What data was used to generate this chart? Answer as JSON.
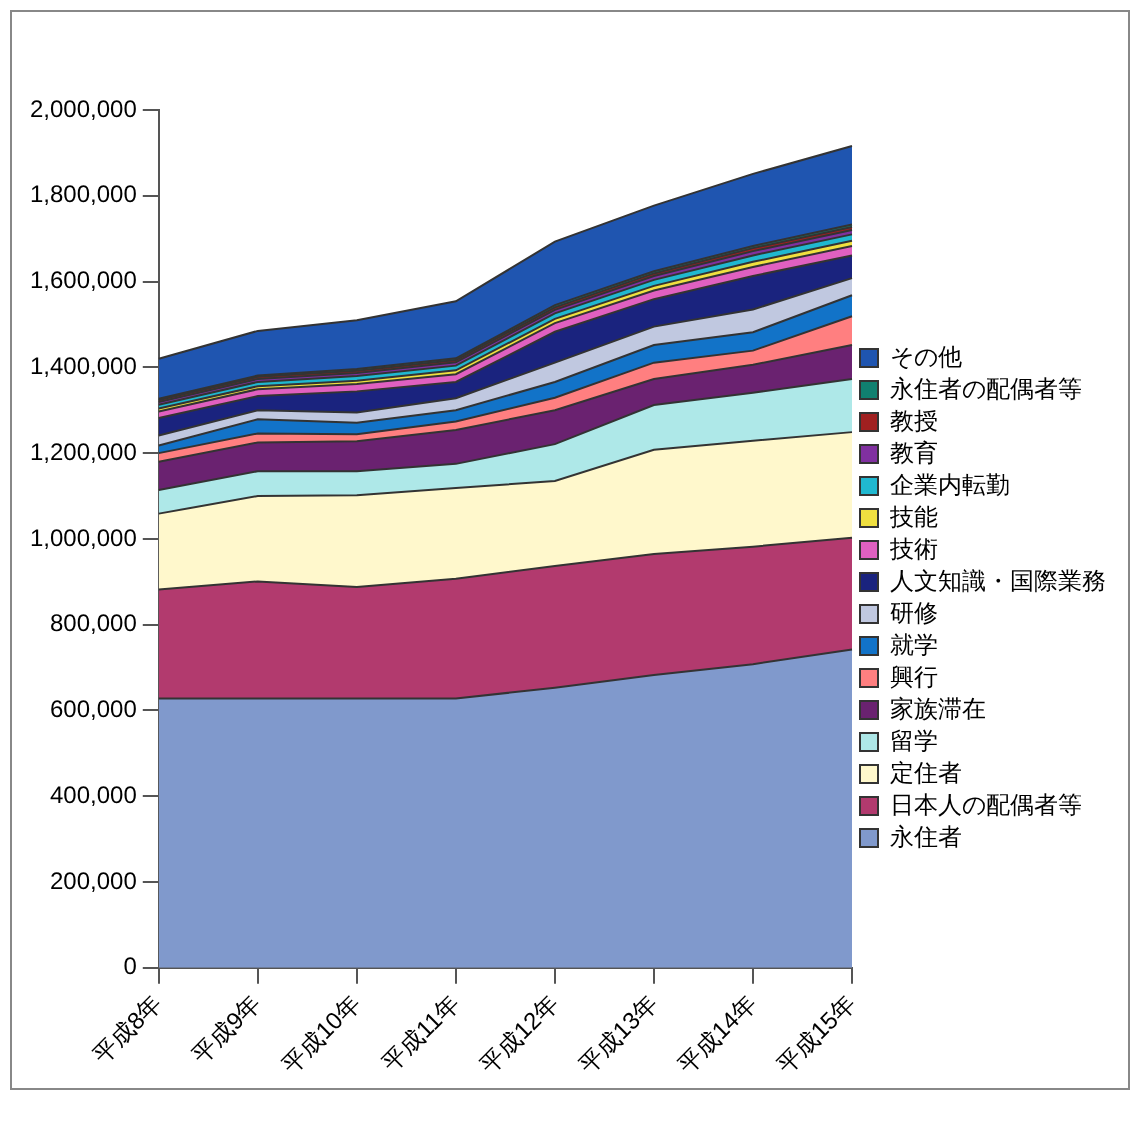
{
  "chart_data": {
    "type": "area",
    "stacked": true,
    "grid": false,
    "legend": "right",
    "categories": [
      "平成8年",
      "平成9年",
      "平成10年",
      "平成11年",
      "平成12年",
      "平成13年",
      "平成14年",
      "平成15年"
    ],
    "ylim": [
      0,
      2000000
    ],
    "yticks": [
      {
        "value": 0,
        "label": "0"
      },
      {
        "value": 200000,
        "label": "200,000"
      },
      {
        "value": 400000,
        "label": "400,000"
      },
      {
        "value": 600000,
        "label": "600,000"
      },
      {
        "value": 800000,
        "label": "800,000"
      },
      {
        "value": 1000000,
        "label": "1,000,000"
      },
      {
        "value": 1200000,
        "label": "1,200,000"
      },
      {
        "value": 1400000,
        "label": "1,400,000"
      },
      {
        "value": 1600000,
        "label": "1,600,000"
      },
      {
        "value": 1800000,
        "label": "1,800,000"
      },
      {
        "value": 2000000,
        "label": "2,000,000"
      }
    ],
    "series": [
      {
        "name": "永住者",
        "color": "#8099cc",
        "values": [
          628000,
          628000,
          628000,
          628000,
          653000,
          683000,
          708000,
          742000
        ]
      },
      {
        "name": "日本人の配偶者等",
        "color": "#b23a6e",
        "values": [
          254000,
          273000,
          260000,
          279000,
          284000,
          282000,
          274000,
          261000
        ]
      },
      {
        "name": "定住者",
        "color": "#fff8cc",
        "values": [
          177000,
          199000,
          214000,
          212000,
          198000,
          243000,
          247000,
          246000
        ]
      },
      {
        "name": "留学",
        "color": "#aee8e8",
        "values": [
          55000,
          58000,
          56000,
          56000,
          86000,
          104000,
          112000,
          124000
        ]
      },
      {
        "name": "家族滞在",
        "color": "#6a2270",
        "values": [
          66000,
          67000,
          70000,
          79000,
          79000,
          61000,
          65000,
          79000
        ]
      },
      {
        "name": "興行",
        "color": "#ff7f80",
        "values": [
          20000,
          21000,
          16000,
          20000,
          29000,
          38000,
          33000,
          67000
        ]
      },
      {
        "name": "就学",
        "color": "#1273c8",
        "values": [
          18000,
          33000,
          27000,
          26000,
          37000,
          41000,
          43000,
          49000
        ]
      },
      {
        "name": "研修",
        "color": "#c0c8e0",
        "values": [
          23000,
          21000,
          24000,
          28000,
          45000,
          43000,
          53000,
          40000
        ]
      },
      {
        "name": "人文知識・国際業務",
        "color": "#1a237e",
        "values": [
          41000,
          33000,
          49000,
          38000,
          72000,
          64000,
          78000,
          53000
        ]
      },
      {
        "name": "技術",
        "color": "#e060c0",
        "values": [
          15000,
          16000,
          17000,
          18000,
          20000,
          20000,
          21000,
          22000
        ]
      },
      {
        "name": "技能",
        "color": "#f0e040",
        "values": [
          7000,
          7000,
          8000,
          9000,
          10000,
          11000,
          12000,
          12000
        ]
      },
      {
        "name": "企業内転勤",
        "color": "#20b8d0",
        "values": [
          9000,
          10000,
          11000,
          11000,
          13000,
          14000,
          15000,
          15000
        ]
      },
      {
        "name": "教育",
        "color": "#8030a0",
        "values": [
          6000,
          7000,
          7000,
          8000,
          8000,
          9000,
          10000,
          10000
        ]
      },
      {
        "name": "教授",
        "color": "#a02020",
        "values": [
          5000,
          5000,
          5000,
          5000,
          6000,
          6000,
          7000,
          7000
        ]
      },
      {
        "name": "永住者の配偶者等",
        "color": "#108070",
        "values": [
          3000,
          3000,
          4000,
          4000,
          5000,
          5000,
          5000,
          6000
        ]
      },
      {
        "name": "その他",
        "color": "#1f55b0",
        "values": [
          93000,
          104000,
          114000,
          133000,
          148000,
          153000,
          168000,
          183000
        ]
      }
    ]
  }
}
